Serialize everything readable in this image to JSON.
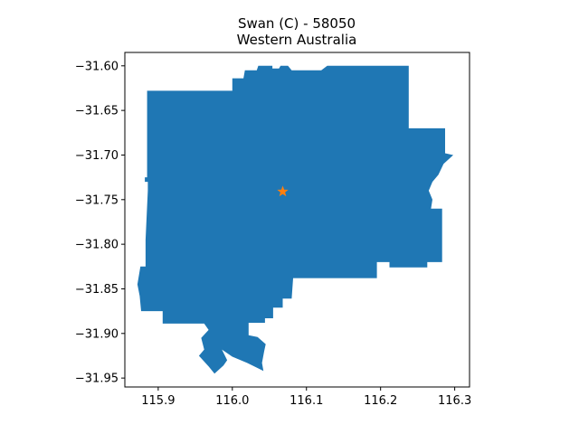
{
  "title": {
    "line1": "Swan (C) - 58050",
    "line2": "Western Australia"
  },
  "colors": {
    "region_fill": "#1f77b4",
    "centroid_marker": "#ff7f0e",
    "axes": "#000000",
    "background": "#ffffff"
  },
  "chart_data": {
    "type": "map",
    "region_name": "Swan (C)",
    "region_code": "58050",
    "state": "Western Australia",
    "xlim": [
      115.855,
      116.32
    ],
    "ylim": [
      -31.96,
      -31.585
    ],
    "xticks": [
      {
        "value": 115.9,
        "label": "115.9"
      },
      {
        "value": 116.0,
        "label": "116.0"
      },
      {
        "value": 116.1,
        "label": "116.1"
      },
      {
        "value": 116.2,
        "label": "116.2"
      },
      {
        "value": 116.3,
        "label": "116.3"
      }
    ],
    "yticks": [
      {
        "value": -31.6,
        "label": "−31.60"
      },
      {
        "value": -31.65,
        "label": "−31.65"
      },
      {
        "value": -31.7,
        "label": "−31.70"
      },
      {
        "value": -31.75,
        "label": "−31.75"
      },
      {
        "value": -31.8,
        "label": "−31.80"
      },
      {
        "value": -31.85,
        "label": "−31.85"
      },
      {
        "value": -31.9,
        "label": "−31.90"
      },
      {
        "value": -31.95,
        "label": "−31.95"
      }
    ],
    "centroid": {
      "lon": 116.068,
      "lat": -31.741,
      "marker": "star"
    },
    "boundary": [
      [
        115.885,
        -31.628
      ],
      [
        116.0,
        -31.628
      ],
      [
        116.0,
        -31.614
      ],
      [
        116.015,
        -31.614
      ],
      [
        116.017,
        -31.605
      ],
      [
        116.033,
        -31.605
      ],
      [
        116.035,
        -31.6
      ],
      [
        116.054,
        -31.6
      ],
      [
        116.054,
        -31.603
      ],
      [
        116.063,
        -31.603
      ],
      [
        116.065,
        -31.6
      ],
      [
        116.075,
        -31.6
      ],
      [
        116.08,
        -31.605
      ],
      [
        116.12,
        -31.605
      ],
      [
        116.128,
        -31.6
      ],
      [
        116.238,
        -31.6
      ],
      [
        116.238,
        -31.67
      ],
      [
        116.287,
        -31.67
      ],
      [
        116.287,
        -31.698
      ],
      [
        116.298,
        -31.7
      ],
      [
        116.285,
        -31.71
      ],
      [
        116.278,
        -31.722
      ],
      [
        116.27,
        -31.73
      ],
      [
        116.265,
        -31.74
      ],
      [
        116.27,
        -31.75
      ],
      [
        116.268,
        -31.76
      ],
      [
        116.283,
        -31.76
      ],
      [
        116.283,
        -31.82
      ],
      [
        116.263,
        -31.82
      ],
      [
        116.263,
        -31.826
      ],
      [
        116.212,
        -31.826
      ],
      [
        116.212,
        -31.82
      ],
      [
        116.195,
        -31.82
      ],
      [
        116.195,
        -31.838
      ],
      [
        116.082,
        -31.838
      ],
      [
        116.08,
        -31.861
      ],
      [
        116.068,
        -31.861
      ],
      [
        116.068,
        -31.871
      ],
      [
        116.055,
        -31.871
      ],
      [
        116.055,
        -31.883
      ],
      [
        116.044,
        -31.883
      ],
      [
        116.044,
        -31.888
      ],
      [
        116.022,
        -31.888
      ],
      [
        116.022,
        -31.902
      ],
      [
        116.034,
        -31.904
      ],
      [
        116.045,
        -31.912
      ],
      [
        116.043,
        -31.92
      ],
      [
        116.04,
        -31.933
      ],
      [
        116.042,
        -31.942
      ],
      [
        116.02,
        -31.933
      ],
      [
        116.0,
        -31.926
      ],
      [
        115.986,
        -31.918
      ],
      [
        115.993,
        -31.93
      ],
      [
        115.988,
        -31.936
      ],
      [
        115.976,
        -31.945
      ],
      [
        115.968,
        -31.937
      ],
      [
        115.955,
        -31.925
      ],
      [
        115.962,
        -31.918
      ],
      [
        115.958,
        -31.905
      ],
      [
        115.968,
        -31.896
      ],
      [
        115.962,
        -31.889
      ],
      [
        115.906,
        -31.889
      ],
      [
        115.906,
        -31.875
      ],
      [
        115.877,
        -31.875
      ],
      [
        115.875,
        -31.858
      ],
      [
        115.872,
        -31.845
      ],
      [
        115.876,
        -31.825
      ],
      [
        115.883,
        -31.825
      ],
      [
        115.883,
        -31.795
      ],
      [
        115.886,
        -31.74
      ],
      [
        115.886,
        -31.73
      ],
      [
        115.882,
        -31.73
      ],
      [
        115.882,
        -31.725
      ],
      [
        115.885,
        -31.725
      ]
    ]
  }
}
